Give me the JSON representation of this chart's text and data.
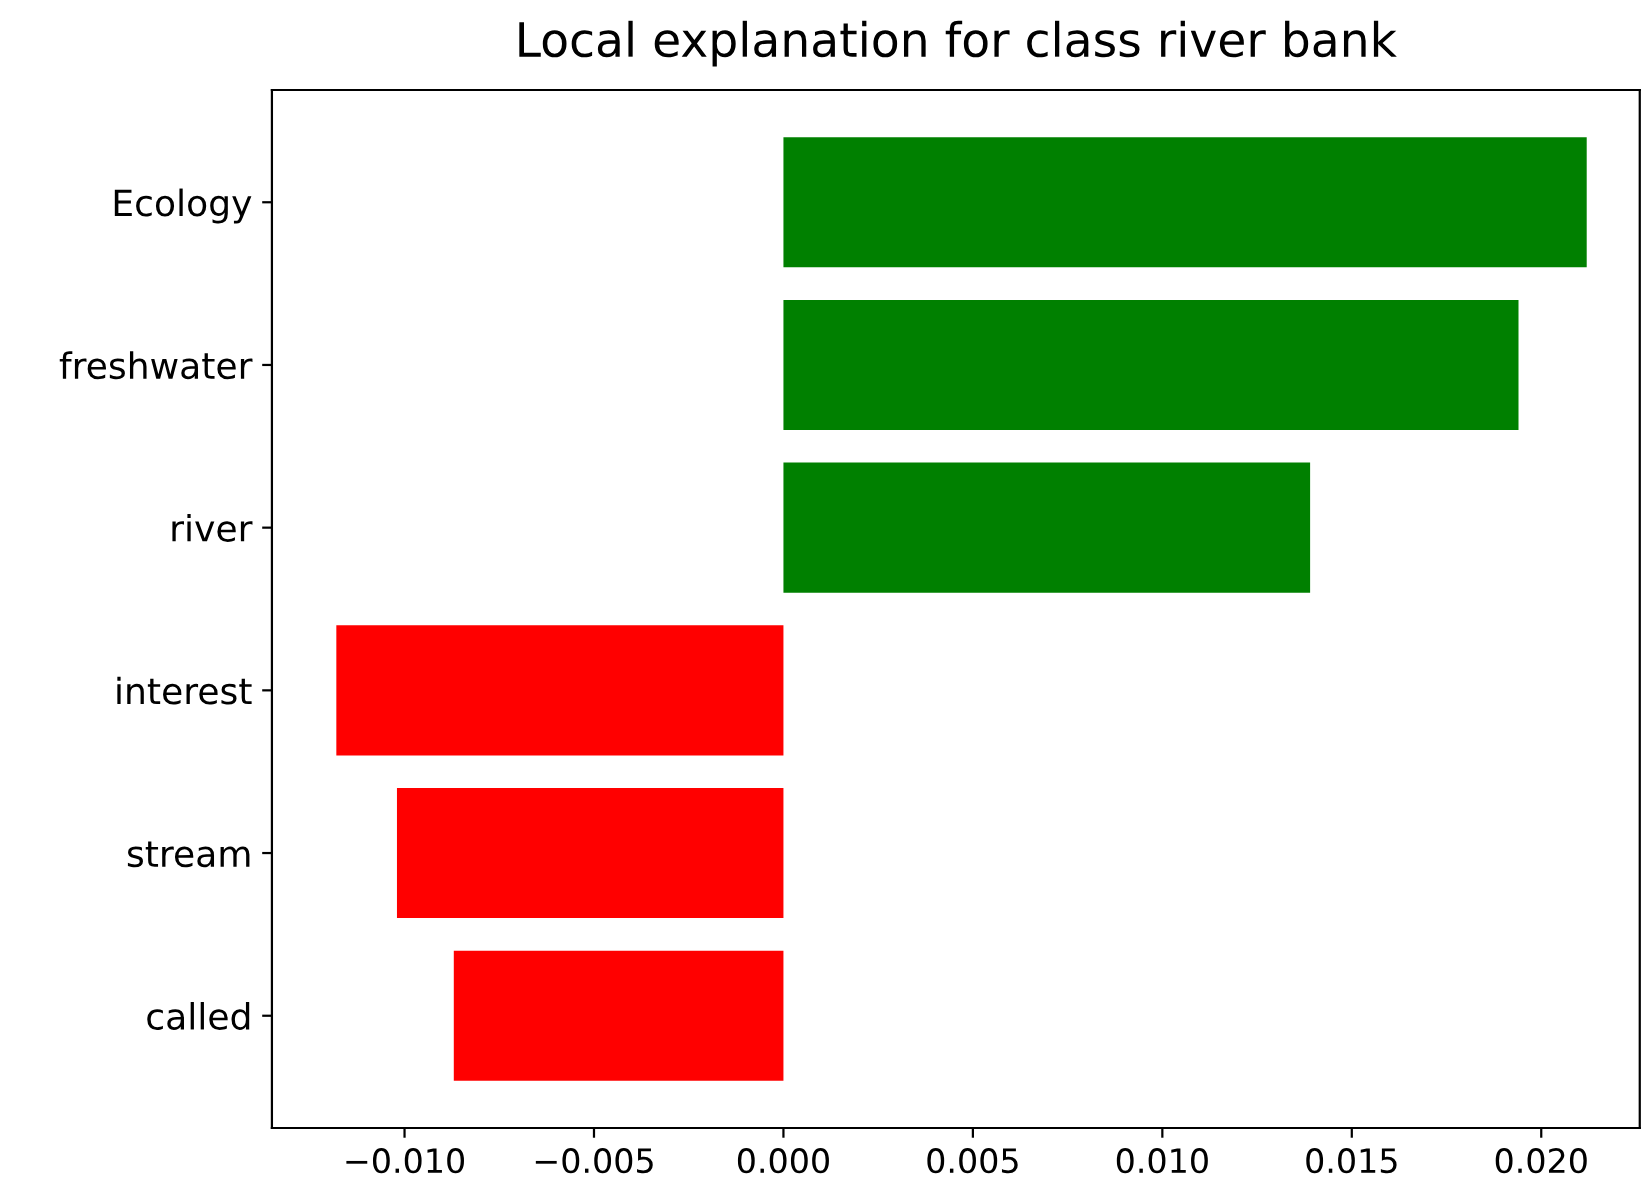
{
  "chart_data": {
    "type": "bar",
    "orientation": "horizontal",
    "title": "Local explanation for class river bank",
    "categories": [
      "Ecology",
      "freshwater",
      "river",
      "interest",
      "stream",
      "called"
    ],
    "values": [
      0.0212,
      0.0194,
      0.0139,
      -0.0118,
      -0.0102,
      -0.0087
    ],
    "colors": [
      "#008000",
      "#008000",
      "#008000",
      "#ff0000",
      "#ff0000",
      "#ff0000"
    ],
    "xlim": [
      -0.0135,
      0.0226
    ],
    "xticks": [
      {
        "value": -0.01,
        "label": "−0.010"
      },
      {
        "value": -0.005,
        "label": "−0.005"
      },
      {
        "value": 0,
        "label": "0.000"
      },
      {
        "value": 0.005,
        "label": "0.005"
      },
      {
        "value": 0.01,
        "label": "0.010"
      },
      {
        "value": 0.015,
        "label": "0.015"
      },
      {
        "value": 0.02,
        "label": "0.020"
      }
    ],
    "grid": false,
    "legend": false
  }
}
